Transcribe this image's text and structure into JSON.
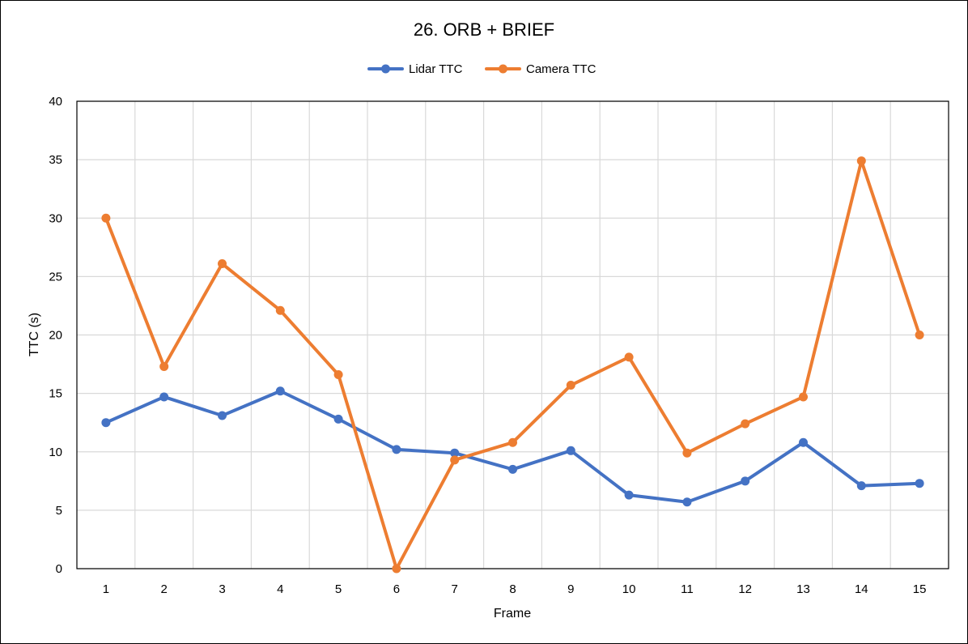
{
  "chart_data": {
    "type": "line",
    "title": "26. ORB + BRIEF",
    "xlabel": "Frame",
    "ylabel": "TTC (s)",
    "categories": [
      "1",
      "2",
      "3",
      "4",
      "5",
      "6",
      "7",
      "8",
      "9",
      "10",
      "11",
      "12",
      "13",
      "14",
      "15"
    ],
    "ylim": [
      0,
      40
    ],
    "yticks": [
      0,
      5,
      10,
      15,
      20,
      25,
      30,
      35,
      40
    ],
    "grid": true,
    "legend_position": "top",
    "series": [
      {
        "name": "Lidar TTC",
        "color": "#4472C4",
        "values": [
          12.5,
          14.7,
          13.1,
          15.2,
          12.8,
          10.2,
          9.9,
          8.5,
          10.1,
          6.3,
          5.7,
          7.5,
          10.8,
          7.1,
          7.3
        ]
      },
      {
        "name": "Camera TTC",
        "color": "#ED7D31",
        "values": [
          30.0,
          17.3,
          26.1,
          22.1,
          16.6,
          0.0,
          9.3,
          10.8,
          15.7,
          18.1,
          9.9,
          12.4,
          14.7,
          34.9,
          20.0
        ]
      }
    ]
  }
}
